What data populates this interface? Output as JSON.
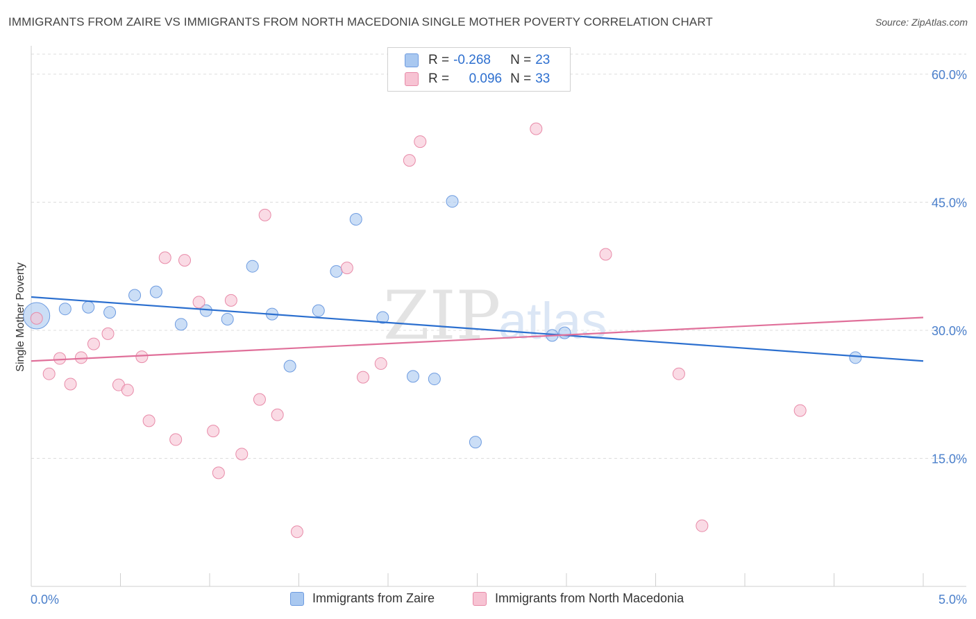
{
  "title": "IMMIGRANTS FROM ZAIRE VS IMMIGRANTS FROM NORTH MACEDONIA SINGLE MOTHER POVERTY CORRELATION CHART",
  "source": "Source: ZipAtlas.com",
  "watermark": {
    "zip": "ZIP",
    "atlas": "atlas"
  },
  "legend": {
    "r_label": "R =",
    "n_label": "N =",
    "zaire": {
      "r": "-0.268",
      "n": "23"
    },
    "macedonia": {
      "r": "0.096",
      "n": "33"
    }
  },
  "chart_data": {
    "type": "scatter",
    "title": "IMMIGRANTS FROM ZAIRE VS IMMIGRANTS FROM NORTH MACEDONIA SINGLE MOTHER POVERTY CORRELATION CHART",
    "xlabel": "",
    "ylabel": "Single Mother Poverty",
    "xlim": [
      0,
      5
    ],
    "ylim": [
      0,
      63
    ],
    "x_tick_labels": [
      "0.0%",
      "5.0%"
    ],
    "y_ticks": [
      15,
      30,
      45,
      60
    ],
    "y_tick_labels": [
      "15.0%",
      "30.0%",
      "45.0%",
      "60.0%"
    ],
    "grid": true,
    "legend_position": "top-center",
    "series": [
      {
        "name": "Immigrants from Zaire",
        "color": "#a9c8f0",
        "edge": "#6d9be0",
        "line_color": "#2b6fcf",
        "trend": {
          "x": [
            0,
            5
          ],
          "y": [
            33.9,
            26.4
          ]
        },
        "points": [
          {
            "x": 0.03,
            "y": 31.7,
            "big": true
          },
          {
            "x": 0.19,
            "y": 32.5
          },
          {
            "x": 0.32,
            "y": 32.7
          },
          {
            "x": 0.44,
            "y": 32.1
          },
          {
            "x": 0.58,
            "y": 34.1
          },
          {
            "x": 0.7,
            "y": 34.5
          },
          {
            "x": 0.84,
            "y": 30.7
          },
          {
            "x": 0.98,
            "y": 32.3
          },
          {
            "x": 1.1,
            "y": 31.3
          },
          {
            "x": 1.24,
            "y": 37.5
          },
          {
            "x": 1.35,
            "y": 31.9
          },
          {
            "x": 1.45,
            "y": 25.8
          },
          {
            "x": 1.61,
            "y": 32.3
          },
          {
            "x": 1.71,
            "y": 36.9
          },
          {
            "x": 1.82,
            "y": 43.0
          },
          {
            "x": 1.97,
            "y": 31.5
          },
          {
            "x": 2.14,
            "y": 24.6
          },
          {
            "x": 2.26,
            "y": 24.3
          },
          {
            "x": 2.36,
            "y": 45.1
          },
          {
            "x": 2.49,
            "y": 16.9
          },
          {
            "x": 2.92,
            "y": 29.4
          },
          {
            "x": 2.99,
            "y": 29.7
          },
          {
            "x": 4.62,
            "y": 26.8
          }
        ]
      },
      {
        "name": "Immigrants from North Macedonia",
        "color": "#f7c3d3",
        "edge": "#e88aa8",
        "line_color": "#e0709a",
        "trend": {
          "x": [
            0,
            5
          ],
          "y": [
            26.4,
            31.5
          ]
        },
        "points": [
          {
            "x": 0.03,
            "y": 31.4
          },
          {
            "x": 0.1,
            "y": 24.9
          },
          {
            "x": 0.16,
            "y": 26.7
          },
          {
            "x": 0.22,
            "y": 23.7
          },
          {
            "x": 0.28,
            "y": 26.8
          },
          {
            "x": 0.35,
            "y": 28.4
          },
          {
            "x": 0.43,
            "y": 29.6
          },
          {
            "x": 0.49,
            "y": 23.6
          },
          {
            "x": 0.54,
            "y": 23.0
          },
          {
            "x": 0.62,
            "y": 26.9
          },
          {
            "x": 0.66,
            "y": 19.4
          },
          {
            "x": 0.75,
            "y": 38.5
          },
          {
            "x": 0.81,
            "y": 17.2
          },
          {
            "x": 0.86,
            "y": 38.2
          },
          {
            "x": 0.94,
            "y": 33.3
          },
          {
            "x": 1.02,
            "y": 18.2
          },
          {
            "x": 1.05,
            "y": 13.3
          },
          {
            "x": 1.12,
            "y": 33.5
          },
          {
            "x": 1.18,
            "y": 15.5
          },
          {
            "x": 1.28,
            "y": 21.9
          },
          {
            "x": 1.31,
            "y": 43.5
          },
          {
            "x": 1.38,
            "y": 20.1
          },
          {
            "x": 1.49,
            "y": 6.4
          },
          {
            "x": 1.77,
            "y": 37.3
          },
          {
            "x": 1.86,
            "y": 24.5
          },
          {
            "x": 1.96,
            "y": 26.1
          },
          {
            "x": 2.12,
            "y": 49.9
          },
          {
            "x": 2.18,
            "y": 52.1
          },
          {
            "x": 2.83,
            "y": 53.6
          },
          {
            "x": 3.22,
            "y": 38.9
          },
          {
            "x": 3.63,
            "y": 24.9
          },
          {
            "x": 3.76,
            "y": 7.1
          },
          {
            "x": 4.31,
            "y": 20.6
          }
        ]
      }
    ]
  }
}
